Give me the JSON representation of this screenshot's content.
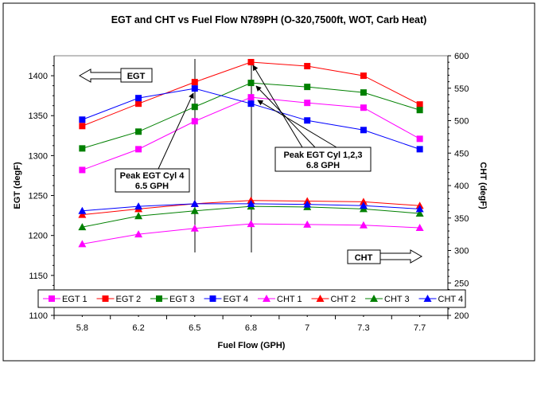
{
  "chart_data": {
    "type": "line",
    "title": "EGT and CHT vs Fuel Flow N789PH (O-320,7500ft, WOT, Carb Heat)",
    "xlabel": "Fuel Flow (GPH)",
    "ylabel": "EGT (degF)",
    "y2label": "CHT (degF)",
    "categories": [
      "5.8",
      "6.2",
      "6.5",
      "6.8",
      "7",
      "7.3",
      "7.7"
    ],
    "ylim": [
      1100,
      1425
    ],
    "y2lim": [
      200,
      600
    ],
    "yticks": [
      1100,
      1150,
      1200,
      1250,
      1300,
      1350,
      1400
    ],
    "y2ticks": [
      200,
      250,
      300,
      350,
      400,
      450,
      500,
      550,
      600
    ],
    "grid": false,
    "legend_position": "bottom",
    "series": [
      {
        "name": "EGT 1",
        "axis": "left",
        "marker": "square",
        "color": "#ff00ff",
        "values": [
          1282,
          1308,
          1343,
          1373,
          1366,
          1360,
          1321
        ]
      },
      {
        "name": "EGT 2",
        "axis": "left",
        "marker": "square",
        "color": "#ff0000",
        "values": [
          1337,
          1365,
          1392,
          1417,
          1412,
          1400,
          1364
        ]
      },
      {
        "name": "EGT 3",
        "axis": "left",
        "marker": "square",
        "color": "#008000",
        "values": [
          1309,
          1330,
          1361,
          1391,
          1386,
          1379,
          1357
        ]
      },
      {
        "name": "EGT 4",
        "axis": "left",
        "marker": "square",
        "color": "#0000ff",
        "values": [
          1345,
          1372,
          1384,
          1365,
          1344,
          1332,
          1308
        ]
      },
      {
        "name": "CHT 1",
        "axis": "right",
        "marker": "triangle",
        "color": "#ff00ff",
        "values": [
          310,
          325,
          334,
          341,
          340,
          339,
          335
        ]
      },
      {
        "name": "CHT 2",
        "axis": "right",
        "marker": "triangle",
        "color": "#ff0000",
        "values": [
          355,
          364,
          372,
          377,
          376,
          375,
          369
        ]
      },
      {
        "name": "CHT 3",
        "axis": "right",
        "marker": "triangle",
        "color": "#008000",
        "values": [
          336,
          353,
          361,
          368,
          367,
          364,
          357
        ]
      },
      {
        "name": "CHT 4",
        "axis": "right",
        "marker": "triangle",
        "color": "#0000ff",
        "values": [
          361,
          368,
          372,
          372,
          371,
          369,
          364
        ]
      }
    ],
    "annotations": {
      "egt_arrow": "EGT",
      "cht_arrow": "CHT",
      "peak4_line1": "Peak EGT Cyl 4",
      "peak4_line2": "6.5 GPH",
      "peak123_line1": "Peak EGT Cyl  1,2,3",
      "peak123_line2": "6.8 GPH"
    }
  }
}
